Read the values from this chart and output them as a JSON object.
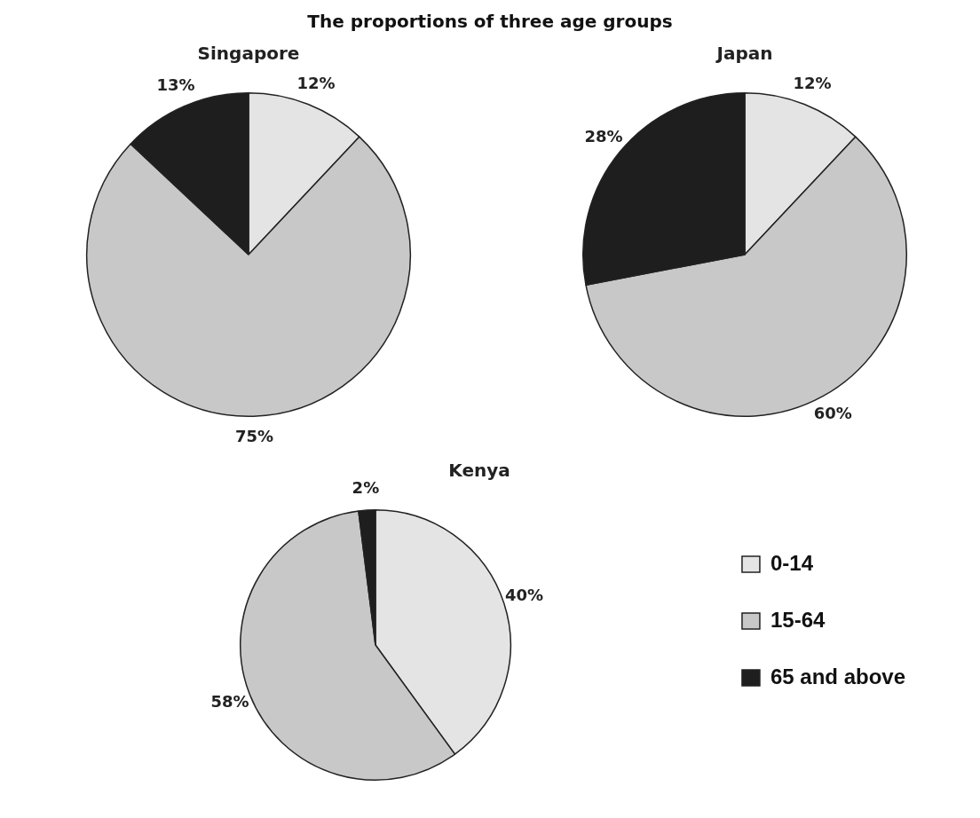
{
  "chart_data": [
    {
      "type": "pie",
      "title": "The proportions of three age groups",
      "subtitle": "Singapore",
      "categories": [
        null,
        null,
        null
      ],
      "values": [
        12,
        75,
        13
      ],
      "colors": [
        "#e4e4e4",
        "#c8c8c8",
        "#1e1e1e"
      ],
      "value_labels": [
        "12%",
        "75%",
        "13%"
      ]
    },
    {
      "type": "pie",
      "title": "Japan",
      "categories": [
        null,
        null,
        null
      ],
      "values": [
        12,
        60,
        28
      ],
      "colors": [
        "#e4e4e4",
        "#c8c8c8",
        "#1e1e1e"
      ],
      "value_labels": [
        "12%",
        "60%",
        "28%"
      ]
    },
    {
      "type": "pie",
      "title": "Kenya",
      "categories": [
        "0-14",
        "15-64",
        "65 and above"
      ],
      "values": [
        40,
        58,
        2
      ],
      "colors": [
        "#e4e4e4",
        "#c8c8c8",
        "#1e1e1e"
      ],
      "value_labels": [
        "40%",
        "58%",
        "2%"
      ],
      "legend": "right"
    }
  ]
}
